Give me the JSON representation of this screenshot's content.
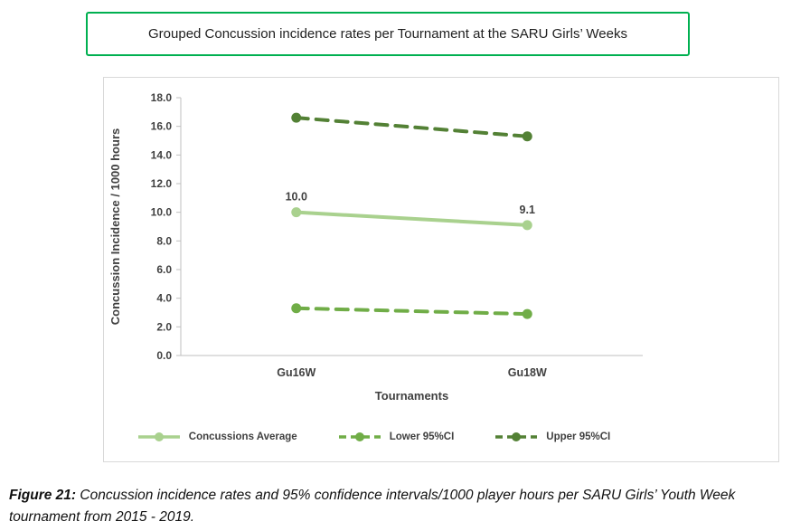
{
  "title_box": {
    "text": "Grouped Concussion incidence rates per Tournament at the SARU Girls’ Weeks"
  },
  "chart_data": {
    "type": "line",
    "title": "Grouped Concussion incidence rates per Tournament at the SARU Girls’ Weeks",
    "categories": [
      "Gu16W",
      "Gu18W"
    ],
    "series": [
      {
        "name": "Concussions Average",
        "color": "#a9d18e",
        "style": "solid",
        "values": [
          10.0,
          9.1
        ],
        "data_labels": [
          "10.0",
          "9.1"
        ]
      },
      {
        "name": "Lower 95%CI",
        "color": "#70ad47",
        "style": "dashed",
        "values": [
          3.3,
          2.9
        ],
        "data_labels": []
      },
      {
        "name": "Upper 95%CI",
        "color": "#538135",
        "style": "dashed",
        "values": [
          16.6,
          15.3
        ],
        "data_labels": []
      }
    ],
    "xlabel": "Tournaments",
    "ylabel": "Concussion Incidence / 1000 hours",
    "ylim": [
      0,
      18
    ],
    "ytick_step": 2,
    "ytick_decimals": 1,
    "grid": false,
    "legend_position": "bottom"
  },
  "caption": {
    "prefix": "Figure 21:",
    "text": " Concussion incidence rates and 95% confidence intervals/1000 player hours per SARU Girls’ Youth Week tournament from 2015 - 2019."
  }
}
